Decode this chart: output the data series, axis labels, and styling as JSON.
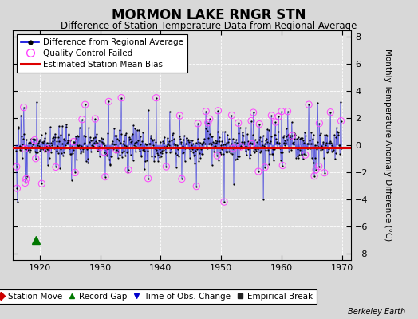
{
  "title": "MORMON LAKE RNGR STN",
  "subtitle": "Difference of Station Temperature Data from Regional Average",
  "ylabel": "Monthly Temperature Anomaly Difference (°C)",
  "xlim": [
    1915.5,
    1971.5
  ],
  "ylim": [
    -8.5,
    8.5
  ],
  "yticks": [
    -8,
    -6,
    -4,
    -2,
    0,
    2,
    4,
    6,
    8
  ],
  "xticks": [
    1920,
    1930,
    1940,
    1950,
    1960,
    1970
  ],
  "mean_bias": -0.15,
  "line_color": "#0000dd",
  "marker_color": "#000000",
  "bias_color": "#dd0000",
  "qc_color": "#ff44ff",
  "bg_color": "#d8d8d8",
  "plot_bg_color": "#e0e0e0",
  "record_gap_color": "#007700",
  "grid_color": "#ffffff",
  "seed": 17,
  "start_year": 1916.083,
  "end_year": 1970.0,
  "font_size_title": 12,
  "font_size_subtitle": 8.5,
  "font_size_ticks": 8,
  "font_size_legend": 7.5,
  "font_size_ylabel": 7.5
}
